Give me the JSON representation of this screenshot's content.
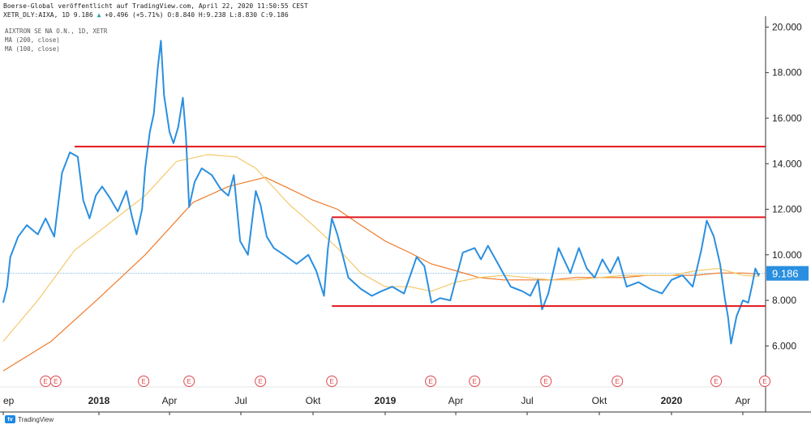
{
  "header": {
    "line1": "Boerse-Global veröffentlicht auf TradingView.com, April 22, 2020 11:50:55 CEST",
    "line2_prefix": "XETR_DLY:AIXA, 1D 9.186",
    "arrow": "▲",
    "line2_suffix": "+0.496 (+5.71%) O:8.840 H:9.238 L:8.830 C:9.186"
  },
  "legend": [
    "AIXTRON SE NA O.N., 1D, XETR",
    "MA (200, close)",
    "MA (100, close)"
  ],
  "footer": {
    "brand": "TradingView",
    "logo": "tv-logo"
  },
  "colors": {
    "price": "#2a8fe0",
    "ma200": "#f07a2a",
    "ma100": "#f5c86a",
    "level": "#e0161c",
    "lastline": "#6ab0e8"
  },
  "earnings_marker": "E",
  "chart_data": {
    "type": "line",
    "title": "",
    "xlabel": "",
    "ylabel": "",
    "ylim": [
      4.2,
      20.3
    ],
    "y_ticks": [
      "6.000",
      "8.000",
      "10.000",
      "12.000",
      "14.000",
      "16.000",
      "18.000",
      "20.000"
    ],
    "y_tick_values": [
      6,
      8,
      10,
      12,
      14,
      16,
      18,
      20
    ],
    "x_range": [
      "2017-09-01",
      "2020-04-30"
    ],
    "x_ticks": [
      {
        "label": "ep",
        "date": "2017-09-01"
      },
      {
        "label": "2018",
        "date": "2018-01-01",
        "bold": true
      },
      {
        "label": "Apr",
        "date": "2018-04-01"
      },
      {
        "label": "Jul",
        "date": "2018-07-01"
      },
      {
        "label": "Okt",
        "date": "2018-10-01"
      },
      {
        "label": "2019",
        "date": "2019-01-01",
        "bold": true
      },
      {
        "label": "Apr",
        "date": "2019-04-01"
      },
      {
        "label": "Jul",
        "date": "2019-07-01"
      },
      {
        "label": "Okt",
        "date": "2019-10-01"
      },
      {
        "label": "2020",
        "date": "2020-01-01",
        "bold": true
      },
      {
        "label": "Apr",
        "date": "2020-04-01"
      }
    ],
    "last_price": "9.186",
    "last_value": 9.186,
    "earnings_dates": [
      "2017-10-25",
      "2017-11-07",
      "2018-02-27",
      "2018-04-26",
      "2018-07-26",
      "2018-10-25",
      "2019-02-28",
      "2019-04-25",
      "2019-07-25",
      "2019-10-24",
      "2020-02-27",
      "2020-04-29"
    ],
    "levels": [
      {
        "y": 14.75,
        "x_start": "2017-12-01",
        "x_end": "2020-04-30"
      },
      {
        "y": 11.65,
        "x_start": "2018-10-25",
        "x_end": "2020-04-30"
      },
      {
        "y": 7.75,
        "x_start": "2018-10-25",
        "x_end": "2020-04-30"
      }
    ],
    "series": [
      {
        "name": "AIXTRON SE NA O.N., 1D, XETR",
        "x": [
          "2017-09-01",
          "2017-09-06",
          "2017-09-10",
          "2017-09-20",
          "2017-10-01",
          "2017-10-15",
          "2017-10-25",
          "2017-11-05",
          "2017-11-15",
          "2017-11-25",
          "2017-12-05",
          "2017-12-12",
          "2017-12-20",
          "2017-12-28",
          "2018-01-05",
          "2018-01-15",
          "2018-01-25",
          "2018-02-05",
          "2018-02-12",
          "2018-02-18",
          "2018-02-25",
          "2018-03-01",
          "2018-03-07",
          "2018-03-12",
          "2018-03-17",
          "2018-03-21",
          "2018-03-25",
          "2018-04-01",
          "2018-04-06",
          "2018-04-12",
          "2018-04-18",
          "2018-04-22",
          "2018-04-26",
          "2018-05-03",
          "2018-05-12",
          "2018-05-25",
          "2018-06-05",
          "2018-06-15",
          "2018-06-22",
          "2018-06-30",
          "2018-07-10",
          "2018-07-20",
          "2018-07-26",
          "2018-08-03",
          "2018-08-12",
          "2018-08-25",
          "2018-09-10",
          "2018-09-25",
          "2018-10-05",
          "2018-10-15",
          "2018-10-20",
          "2018-10-25",
          "2018-11-01",
          "2018-11-15",
          "2018-12-01",
          "2018-12-15",
          "2018-12-27",
          "2019-01-10",
          "2019-01-25",
          "2019-02-10",
          "2019-02-20",
          "2019-03-01",
          "2019-03-12",
          "2019-03-25",
          "2019-04-10",
          "2019-04-25",
          "2019-05-03",
          "2019-05-12",
          "2019-05-25",
          "2019-06-10",
          "2019-06-25",
          "2019-07-05",
          "2019-07-15",
          "2019-07-20",
          "2019-07-28",
          "2019-08-10",
          "2019-08-25",
          "2019-09-05",
          "2019-09-15",
          "2019-09-25",
          "2019-10-05",
          "2019-10-15",
          "2019-10-25",
          "2019-11-05",
          "2019-11-20",
          "2019-12-05",
          "2019-12-20",
          "2020-01-01",
          "2020-01-15",
          "2020-01-28",
          "2020-02-08",
          "2020-02-15",
          "2020-02-24",
          "2020-03-03",
          "2020-03-09",
          "2020-03-13",
          "2020-03-17",
          "2020-03-24",
          "2020-04-01",
          "2020-04-08",
          "2020-04-13",
          "2020-04-17",
          "2020-04-21",
          "2020-04-22"
        ],
        "values": [
          7.9,
          8.6,
          9.9,
          10.8,
          11.3,
          10.9,
          11.6,
          10.8,
          13.6,
          14.5,
          14.3,
          12.4,
          11.6,
          12.6,
          13.0,
          12.5,
          11.9,
          12.8,
          11.7,
          10.9,
          12.0,
          13.8,
          15.4,
          16.2,
          18.2,
          19.4,
          17.0,
          15.4,
          14.9,
          15.6,
          16.9,
          15.2,
          12.1,
          13.2,
          13.8,
          13.5,
          12.9,
          12.6,
          13.5,
          10.6,
          10.0,
          12.8,
          12.2,
          10.8,
          10.3,
          10.0,
          9.6,
          10.0,
          9.3,
          8.2,
          10.3,
          11.6,
          10.9,
          9.0,
          8.5,
          8.2,
          8.4,
          8.6,
          8.3,
          9.9,
          9.5,
          7.9,
          8.1,
          8.0,
          10.1,
          10.3,
          9.8,
          10.4,
          9.6,
          8.6,
          8.4,
          8.2,
          8.9,
          7.6,
          8.3,
          10.3,
          9.2,
          10.3,
          9.4,
          9.0,
          9.8,
          9.2,
          9.9,
          8.6,
          8.8,
          8.5,
          8.3,
          8.9,
          9.1,
          8.6,
          10.2,
          11.5,
          10.8,
          9.6,
          8.1,
          7.3,
          6.1,
          7.3,
          8.0,
          7.9,
          8.7,
          9.4,
          9.1,
          9.186
        ],
        "color": "#2a8fe0"
      },
      {
        "name": "MA (100, close)",
        "x": [
          "2017-09-01",
          "2017-10-15",
          "2017-12-01",
          "2018-01-15",
          "2018-03-01",
          "2018-04-10",
          "2018-05-20",
          "2018-06-25",
          "2018-07-20",
          "2018-09-01",
          "2018-10-01",
          "2018-11-01",
          "2018-12-01",
          "2019-01-01",
          "2019-02-01",
          "2019-03-01",
          "2019-04-01",
          "2019-05-01",
          "2019-06-01",
          "2019-07-01",
          "2019-08-01",
          "2019-09-01",
          "2019-10-01",
          "2019-11-01",
          "2019-12-01",
          "2020-01-01",
          "2020-02-01",
          "2020-03-01",
          "2020-04-01",
          "2020-04-22"
        ],
        "values": [
          6.2,
          8.0,
          10.2,
          11.4,
          12.6,
          14.1,
          14.4,
          14.3,
          13.8,
          12.2,
          11.3,
          10.3,
          9.2,
          8.6,
          8.6,
          8.4,
          8.8,
          9.0,
          9.1,
          9.0,
          8.9,
          8.9,
          9.0,
          9.1,
          9.1,
          9.1,
          9.3,
          9.4,
          9.1,
          9.05
        ],
        "color": "#f5c86a"
      },
      {
        "name": "MA (200, close)",
        "x": [
          "2017-09-01",
          "2017-11-01",
          "2018-01-01",
          "2018-03-01",
          "2018-05-01",
          "2018-06-15",
          "2018-08-01",
          "2018-09-01",
          "2018-10-01",
          "2018-11-01",
          "2018-12-01",
          "2019-01-01",
          "2019-02-01",
          "2019-03-01",
          "2019-04-01",
          "2019-05-01",
          "2019-06-01",
          "2019-07-01",
          "2019-08-01",
          "2019-09-01",
          "2019-10-01",
          "2019-11-01",
          "2019-12-01",
          "2020-01-01",
          "2020-02-01",
          "2020-03-01",
          "2020-04-01",
          "2020-04-22"
        ],
        "values": [
          4.9,
          6.2,
          8.1,
          10.0,
          12.3,
          13.0,
          13.4,
          12.9,
          12.4,
          12.0,
          11.3,
          10.6,
          10.1,
          9.6,
          9.3,
          9.0,
          8.9,
          8.9,
          8.9,
          9.0,
          9.0,
          9.0,
          9.1,
          9.1,
          9.1,
          9.2,
          9.2,
          9.15
        ],
        "color": "#f07a2a"
      }
    ]
  }
}
